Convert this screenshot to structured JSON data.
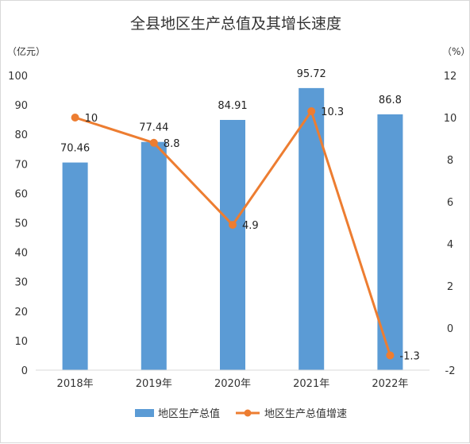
{
  "chart_data": {
    "type": "bar+line",
    "title": "全县地区生产总值及其增长速度",
    "categories": [
      "2018年",
      "2019年",
      "2020年",
      "2021年",
      "2022年"
    ],
    "left_axis": {
      "unit": "（亿元）",
      "ylim": [
        0,
        100
      ],
      "ticks": [
        0,
        10,
        20,
        30,
        40,
        50,
        60,
        70,
        80,
        90,
        100
      ]
    },
    "right_axis": {
      "unit": "（%）",
      "ylim": [
        -2,
        12
      ],
      "ticks": [
        -2,
        0,
        2,
        4,
        6,
        8,
        10,
        12
      ]
    },
    "series": [
      {
        "name": "地区生产总值",
        "type": "bar",
        "axis": "left",
        "color": "#5b9bd5",
        "values": [
          70.46,
          77.44,
          84.91,
          95.72,
          86.8
        ],
        "labels": [
          "70.46",
          "77.44",
          "84.91",
          "95.72",
          "86.8"
        ]
      },
      {
        "name": "地区生产总值增速",
        "type": "line",
        "axis": "right",
        "color": "#ed7d31",
        "values": [
          10,
          8.8,
          4.9,
          10.3,
          -1.3
        ],
        "labels": [
          "10",
          "8.8",
          "4.9",
          "10.3",
          "-1.3"
        ]
      }
    ],
    "grid": false,
    "legend": "bottom"
  }
}
